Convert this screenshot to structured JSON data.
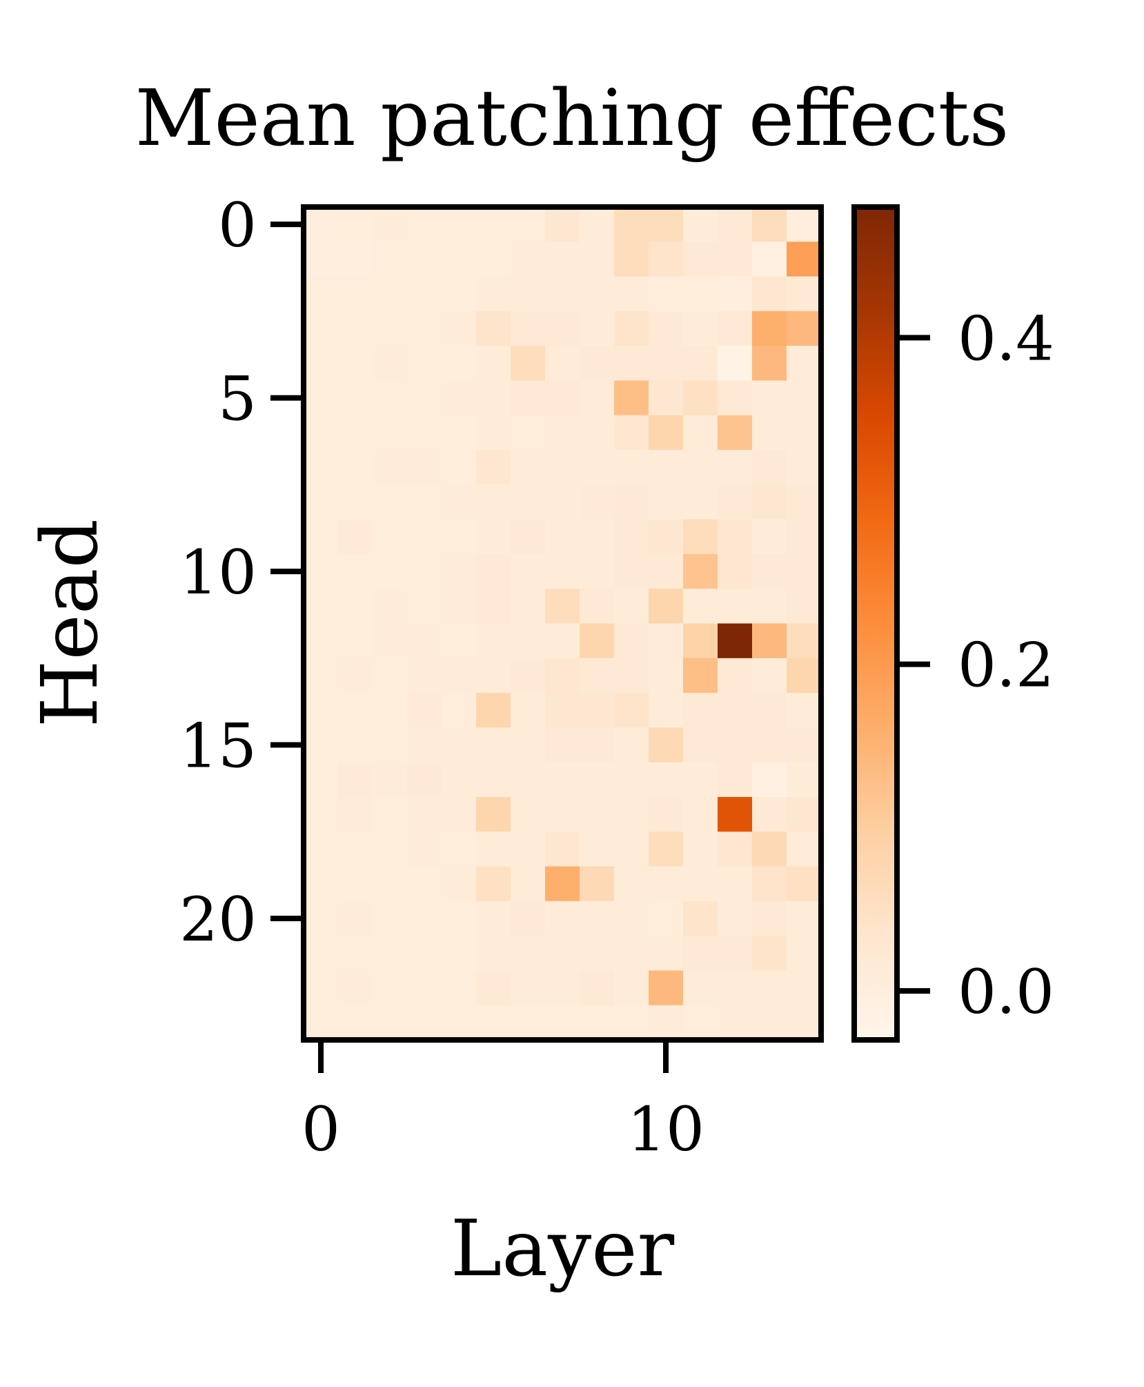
{
  "chart_data": {
    "type": "heatmap",
    "title": "Mean patching effects",
    "xlabel": "Layer",
    "ylabel": "Head",
    "x_ticks": [
      0,
      10
    ],
    "y_ticks": [
      0,
      5,
      10,
      15,
      20
    ],
    "n_layers": 15,
    "n_heads": 24,
    "colormap": "Oranges",
    "colorbar": {
      "range": [
        -0.03,
        0.48
      ],
      "ticks": [
        0.0,
        0.2,
        0.4
      ],
      "tick_labels": [
        "0.0",
        "0.2",
        "0.4"
      ]
    },
    "values": [
      [
        0.0,
        0.005,
        0.01,
        0.005,
        0.005,
        0.005,
        0.005,
        0.03,
        0.01,
        0.06,
        0.06,
        0.01,
        0.02,
        0.06,
        0.0
      ],
      [
        0.0,
        0.0,
        0.005,
        0.005,
        0.005,
        0.005,
        0.01,
        0.01,
        0.01,
        0.06,
        0.04,
        0.02,
        0.02,
        -0.01,
        0.19
      ],
      [
        0.005,
        0.005,
        0.005,
        0.005,
        0.005,
        0.01,
        0.01,
        0.01,
        0.01,
        0.01,
        0.005,
        0.005,
        0.0,
        0.03,
        0.02
      ],
      [
        0.005,
        0.005,
        0.005,
        0.005,
        0.01,
        0.04,
        0.02,
        0.02,
        0.01,
        0.04,
        0.02,
        0.01,
        0.02,
        0.16,
        0.14
      ],
      [
        0.005,
        0.005,
        0.01,
        0.005,
        0.005,
        0.01,
        0.06,
        0.01,
        0.02,
        0.02,
        0.02,
        0.02,
        -0.02,
        0.14,
        0.01
      ],
      [
        0.005,
        0.005,
        0.005,
        0.005,
        0.01,
        0.01,
        0.02,
        0.02,
        0.01,
        0.13,
        0.03,
        0.05,
        0.02,
        0.01,
        0.01
      ],
      [
        0.005,
        0.005,
        0.005,
        0.005,
        0.005,
        0.01,
        0.005,
        0.01,
        0.01,
        0.03,
        0.08,
        0.01,
        0.12,
        0.01,
        0.01
      ],
      [
        0.005,
        0.005,
        0.01,
        0.01,
        0.005,
        0.03,
        0.01,
        0.01,
        0.01,
        0.01,
        0.01,
        0.01,
        0.01,
        0.02,
        0.01
      ],
      [
        0.005,
        0.005,
        0.005,
        0.005,
        0.01,
        0.01,
        0.01,
        0.01,
        0.015,
        0.02,
        0.01,
        0.01,
        0.02,
        0.03,
        0.02
      ],
      [
        0.005,
        0.015,
        0.005,
        0.005,
        0.005,
        0.01,
        0.02,
        0.01,
        0.01,
        0.02,
        0.03,
        0.06,
        0.03,
        0.01,
        0.02
      ],
      [
        0.005,
        0.005,
        0.005,
        0.005,
        0.01,
        0.02,
        0.01,
        0.01,
        0.01,
        0.02,
        0.02,
        0.12,
        0.03,
        0.02,
        0.02
      ],
      [
        0.005,
        0.005,
        0.01,
        0.005,
        0.01,
        0.02,
        0.01,
        0.06,
        0.02,
        0.01,
        0.08,
        0.01,
        0.01,
        0.01,
        0.02
      ],
      [
        0.005,
        0.005,
        0.01,
        0.01,
        0.005,
        0.01,
        0.01,
        0.01,
        0.08,
        0.02,
        0.01,
        0.09,
        0.48,
        0.14,
        0.06
      ],
      [
        0.005,
        0.01,
        0.005,
        0.01,
        0.01,
        0.01,
        0.02,
        0.03,
        0.02,
        0.02,
        0.01,
        0.13,
        0.02,
        0.01,
        0.08
      ],
      [
        0.005,
        0.005,
        0.005,
        0.015,
        0.005,
        0.08,
        0.01,
        0.03,
        0.03,
        0.04,
        0.01,
        0.02,
        0.02,
        0.02,
        0.01
      ],
      [
        0.005,
        0.005,
        0.005,
        0.01,
        0.01,
        0.01,
        0.01,
        0.02,
        0.02,
        0.01,
        0.07,
        0.02,
        0.02,
        0.02,
        0.02
      ],
      [
        0.005,
        0.015,
        0.01,
        0.02,
        0.01,
        0.01,
        0.01,
        0.01,
        0.01,
        0.01,
        0.01,
        0.01,
        0.02,
        -0.01,
        0.01
      ],
      [
        0.005,
        0.01,
        0.005,
        0.01,
        0.01,
        0.08,
        0.01,
        0.01,
        0.01,
        0.01,
        0.02,
        0.01,
        0.33,
        0.02,
        0.03
      ],
      [
        0.005,
        0.005,
        0.005,
        0.01,
        0.005,
        0.01,
        0.01,
        0.03,
        0.01,
        0.01,
        0.06,
        0.01,
        0.03,
        0.07,
        0.01
      ],
      [
        0.005,
        0.005,
        0.005,
        0.005,
        0.01,
        0.05,
        0.01,
        0.16,
        0.07,
        0.01,
        0.01,
        0.01,
        0.01,
        0.04,
        0.05
      ],
      [
        0.005,
        0.01,
        0.005,
        0.005,
        0.005,
        0.01,
        0.02,
        0.01,
        0.01,
        0.01,
        0.005,
        0.04,
        0.01,
        0.02,
        0.01
      ],
      [
        0.005,
        0.005,
        0.005,
        0.005,
        0.005,
        0.01,
        0.01,
        0.01,
        0.01,
        0.01,
        0.01,
        0.02,
        0.02,
        0.04,
        0.01
      ],
      [
        0.005,
        0.01,
        0.005,
        0.005,
        0.005,
        0.02,
        0.01,
        0.01,
        0.02,
        0.01,
        0.14,
        0.01,
        0.01,
        0.01,
        0.01
      ],
      [
        0.005,
        0.005,
        0.005,
        0.005,
        0.005,
        0.005,
        0.005,
        0.005,
        0.005,
        0.005,
        0.01,
        0.005,
        0.01,
        0.01,
        0.01
      ]
    ]
  }
}
